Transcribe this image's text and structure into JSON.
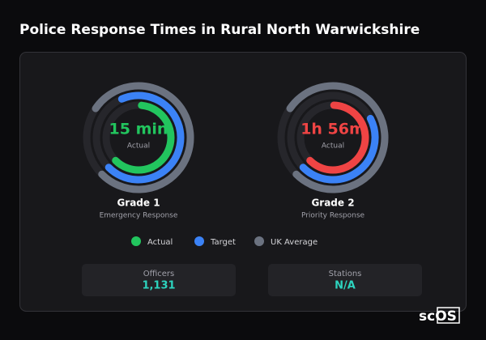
{
  "title": "Police Response Times in Rural North Warwickshire",
  "gauges": [
    {
      "value_label": "15 min",
      "value_caption": "Actual",
      "name": "Grade 1",
      "subtitle": "Emergency Response",
      "actual_color": "#22c55e",
      "arcs": [
        61,
        69,
        78
      ]
    },
    {
      "value_label": "1h 56m",
      "value_caption": "Actual",
      "name": "Grade 2",
      "subtitle": "Priority Response",
      "actual_color": "#ef4444",
      "arcs": [
        62,
        45,
        78
      ]
    }
  ],
  "legend": [
    {
      "label": "Actual",
      "color": "#22c55e"
    },
    {
      "label": "Target",
      "color": "#3b82f6"
    },
    {
      "label": "UK Average",
      "color": "#6b7280"
    }
  ],
  "stats": [
    {
      "label": "Officers",
      "value": "1,131"
    },
    {
      "label": "Stations",
      "value": "N/A"
    }
  ],
  "logo": "scOS"
}
